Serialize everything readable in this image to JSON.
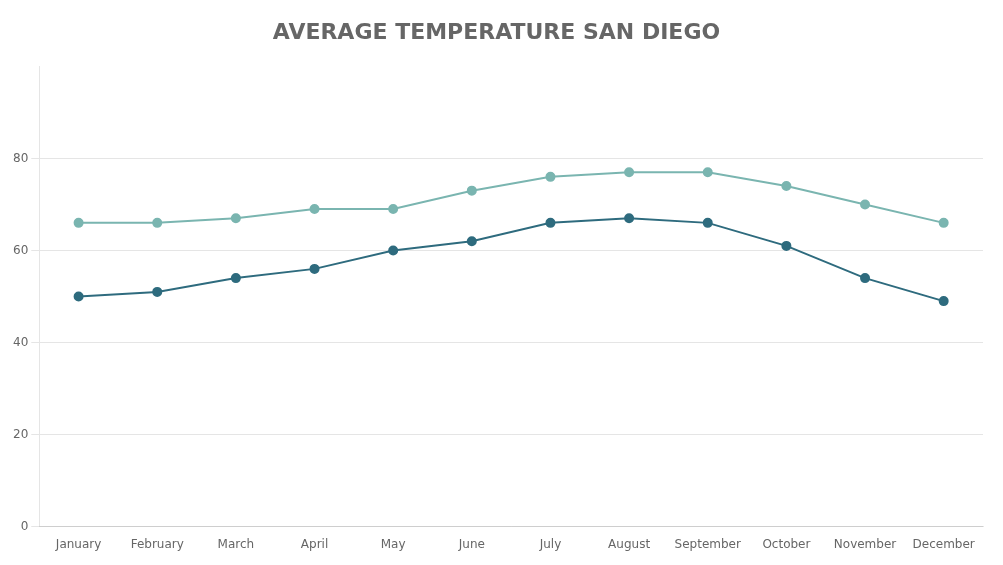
{
  "chart_data": {
    "type": "line",
    "title": "AVERAGE TEMPERATURE SAN DIEGO",
    "categories": [
      "January",
      "February",
      "March",
      "April",
      "May",
      "June",
      "July",
      "August",
      "September",
      "October",
      "November",
      "December"
    ],
    "series": [
      {
        "color": "#7ab5b0",
        "marker": "circle",
        "values": [
          66,
          66,
          67,
          69,
          69,
          73,
          76,
          77,
          77,
          74,
          70,
          66
        ]
      },
      {
        "color": "#2e6b7e",
        "marker": "circle",
        "values": [
          50,
          51,
          54,
          56,
          60,
          62,
          66,
          67,
          66,
          61,
          54,
          49
        ]
      }
    ],
    "ylim": [
      0,
      100
    ],
    "yticks": [
      0,
      20,
      40,
      60,
      80
    ],
    "grid": true
  }
}
